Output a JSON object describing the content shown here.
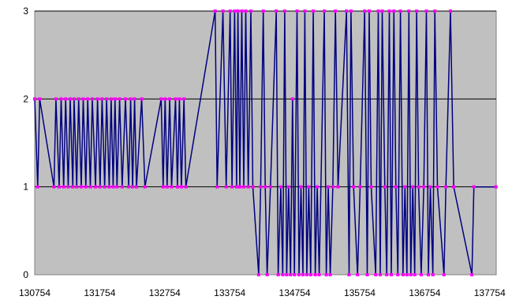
{
  "chart_data": {
    "type": "line",
    "title": "",
    "xlabel": "",
    "ylabel": "",
    "xlim": [
      130754,
      137854
    ],
    "ylim": [
      0,
      3
    ],
    "x_ticks": [
      "130754",
      "131754",
      "132754",
      "133754",
      "134754",
      "135754",
      "136754",
      "137754"
    ],
    "y_ticks": [
      "0",
      "1",
      "2",
      "3"
    ],
    "grid": "horizontal",
    "legend": "none",
    "colors": {
      "plot_background": "#c0c0c0",
      "line": "#000080",
      "marker": "#ff00ff",
      "grid": "#000000"
    },
    "series": [
      {
        "values": [
          [
            130754,
            2
          ],
          [
            130800,
            1
          ],
          [
            130830,
            2
          ],
          [
            131050,
            1
          ],
          [
            131080,
            2
          ],
          [
            131130,
            1
          ],
          [
            131160,
            2
          ],
          [
            131200,
            1
          ],
          [
            131230,
            2
          ],
          [
            131270,
            1
          ],
          [
            131300,
            2
          ],
          [
            131340,
            1
          ],
          [
            131360,
            2
          ],
          [
            131400,
            1
          ],
          [
            131430,
            2
          ],
          [
            131470,
            1
          ],
          [
            131500,
            2
          ],
          [
            131540,
            1
          ],
          [
            131570,
            2
          ],
          [
            131610,
            1
          ],
          [
            131640,
            2
          ],
          [
            131690,
            1
          ],
          [
            131720,
            2
          ],
          [
            131760,
            1
          ],
          [
            131790,
            2
          ],
          [
            131830,
            1
          ],
          [
            131860,
            2
          ],
          [
            131900,
            1
          ],
          [
            131930,
            2
          ],
          [
            131960,
            1
          ],
          [
            131990,
            2
          ],
          [
            132020,
            1
          ],
          [
            132060,
            2
          ],
          [
            132100,
            1
          ],
          [
            132150,
            2
          ],
          [
            132200,
            1
          ],
          [
            132230,
            2
          ],
          [
            132260,
            1
          ],
          [
            132290,
            2
          ],
          [
            132320,
            1
          ],
          [
            132400,
            2
          ],
          [
            132450,
            1
          ],
          [
            132700,
            2
          ],
          [
            132730,
            1
          ],
          [
            132760,
            2
          ],
          [
            132790,
            1
          ],
          [
            132830,
            2
          ],
          [
            132860,
            1
          ],
          [
            132920,
            2
          ],
          [
            132950,
            1
          ],
          [
            132980,
            2
          ],
          [
            133010,
            1
          ],
          [
            133050,
            2
          ],
          [
            133080,
            1
          ],
          [
            133530,
            3
          ],
          [
            133560,
            1
          ],
          [
            133650,
            3
          ],
          [
            133700,
            1
          ],
          [
            133760,
            3
          ],
          [
            133790,
            1
          ],
          [
            133830,
            3
          ],
          [
            133860,
            1
          ],
          [
            133880,
            3
          ],
          [
            133910,
            1
          ],
          [
            133940,
            3
          ],
          [
            133970,
            1
          ],
          [
            134000,
            3
          ],
          [
            134040,
            1
          ],
          [
            134080,
            3
          ],
          [
            134110,
            1
          ],
          [
            134200,
            0
          ],
          [
            134230,
            1
          ],
          [
            134270,
            3
          ],
          [
            134300,
            1
          ],
          [
            134330,
            0
          ],
          [
            134380,
            1
          ],
          [
            134470,
            3
          ],
          [
            134500,
            0
          ],
          [
            134540,
            1
          ],
          [
            134570,
            0
          ],
          [
            134600,
            3
          ],
          [
            134630,
            0
          ],
          [
            134660,
            1
          ],
          [
            134690,
            0
          ],
          [
            134720,
            2
          ],
          [
            134750,
            0
          ],
          [
            134790,
            3
          ],
          [
            134820,
            0
          ],
          [
            134850,
            1
          ],
          [
            134880,
            0
          ],
          [
            134910,
            3
          ],
          [
            134940,
            0
          ],
          [
            134970,
            1
          ],
          [
            135000,
            0
          ],
          [
            135040,
            3
          ],
          [
            135070,
            0
          ],
          [
            135100,
            1
          ],
          [
            135130,
            0
          ],
          [
            135210,
            3
          ],
          [
            135240,
            0
          ],
          [
            135270,
            1
          ],
          [
            135300,
            0
          ],
          [
            135340,
            1
          ],
          [
            135380,
            3
          ],
          [
            135420,
            1
          ],
          [
            135550,
            3
          ],
          [
            135590,
            0
          ],
          [
            135620,
            3
          ],
          [
            135660,
            1
          ],
          [
            135720,
            0
          ],
          [
            135760,
            1
          ],
          [
            135830,
            3
          ],
          [
            135870,
            0
          ],
          [
            135900,
            3
          ],
          [
            135930,
            1
          ],
          [
            136000,
            0
          ],
          [
            136040,
            3
          ],
          [
            136070,
            0
          ],
          [
            136100,
            3
          ],
          [
            136140,
            1
          ],
          [
            136170,
            0
          ],
          [
            136210,
            3
          ],
          [
            136240,
            0
          ],
          [
            136280,
            3
          ],
          [
            136310,
            1
          ],
          [
            136340,
            0
          ],
          [
            136380,
            3
          ],
          [
            136420,
            0
          ],
          [
            136450,
            1
          ],
          [
            136480,
            0
          ],
          [
            136510,
            3
          ],
          [
            136540,
            0
          ],
          [
            136570,
            1
          ],
          [
            136600,
            0
          ],
          [
            136630,
            3
          ],
          [
            136660,
            1
          ],
          [
            136700,
            0
          ],
          [
            136740,
            1
          ],
          [
            136780,
            3
          ],
          [
            136810,
            0
          ],
          [
            136840,
            1
          ],
          [
            136880,
            0
          ],
          [
            136910,
            3
          ],
          [
            136950,
            1
          ],
          [
            137050,
            0
          ],
          [
            137080,
            1
          ],
          [
            137150,
            3
          ],
          [
            137200,
            1
          ],
          [
            137480,
            0
          ],
          [
            137510,
            1
          ],
          [
            137850,
            1
          ]
        ]
      }
    ]
  }
}
